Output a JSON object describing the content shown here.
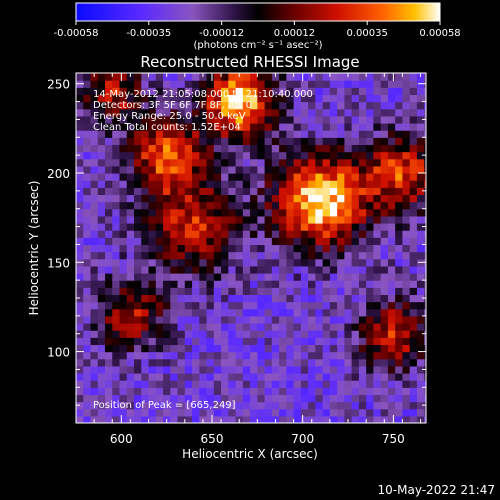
{
  "chart_data": {
    "type": "heatmap",
    "title": "Reconstructed RHESSI Image",
    "xlabel": "Heliocentric X (arcsec)",
    "ylabel": "Heliocentric Y (arcsec)",
    "xlim": [
      575,
      768
    ],
    "ylim": [
      60,
      256
    ],
    "xticks": [
      600,
      650,
      700,
      750
    ],
    "yticks": [
      100,
      150,
      200,
      250
    ],
    "colorbar": {
      "ticks": [
        "-0.00058",
        "-0.00035",
        "-0.00012",
        "0.00012",
        "0.00035",
        "0.00058"
      ],
      "range": [
        -0.00058,
        0.00058
      ],
      "unit_label": "(photons cm⁻² s⁻¹ asec⁻²)"
    },
    "annotations": [
      "14-May-2012 21:05:08.000 to 21:10:40.000",
      "Detectors: 3F 5F 6F 7F 8F, Att 0",
      "Energy Range: 25.0 - 50.0 keV",
      "Clean     Total counts: 1.52E+04"
    ],
    "peak_label": "Position of Peak = [665,249]",
    "peak": [
      665,
      249
    ],
    "sources": [
      {
        "x": 710,
        "y": 185,
        "amplitude": 0.00058,
        "sigma": 18
      },
      {
        "x": 665,
        "y": 240,
        "amplitude": 0.00055,
        "sigma": 14
      },
      {
        "x": 625,
        "y": 210,
        "amplitude": 0.00035,
        "sigma": 15
      },
      {
        "x": 755,
        "y": 200,
        "amplitude": 0.0003,
        "sigma": 15
      },
      {
        "x": 640,
        "y": 170,
        "amplitude": 0.00025,
        "sigma": 18
      },
      {
        "x": 750,
        "y": 110,
        "amplitude": 0.00025,
        "sigma": 14
      },
      {
        "x": 605,
        "y": 120,
        "amplitude": 0.0002,
        "sigma": 14
      },
      {
        "x": 595,
        "y": 245,
        "amplitude": 0.0002,
        "sigma": 12
      }
    ],
    "background_level": -0.00025
  },
  "timestamp": "10-May-2022 21:47"
}
